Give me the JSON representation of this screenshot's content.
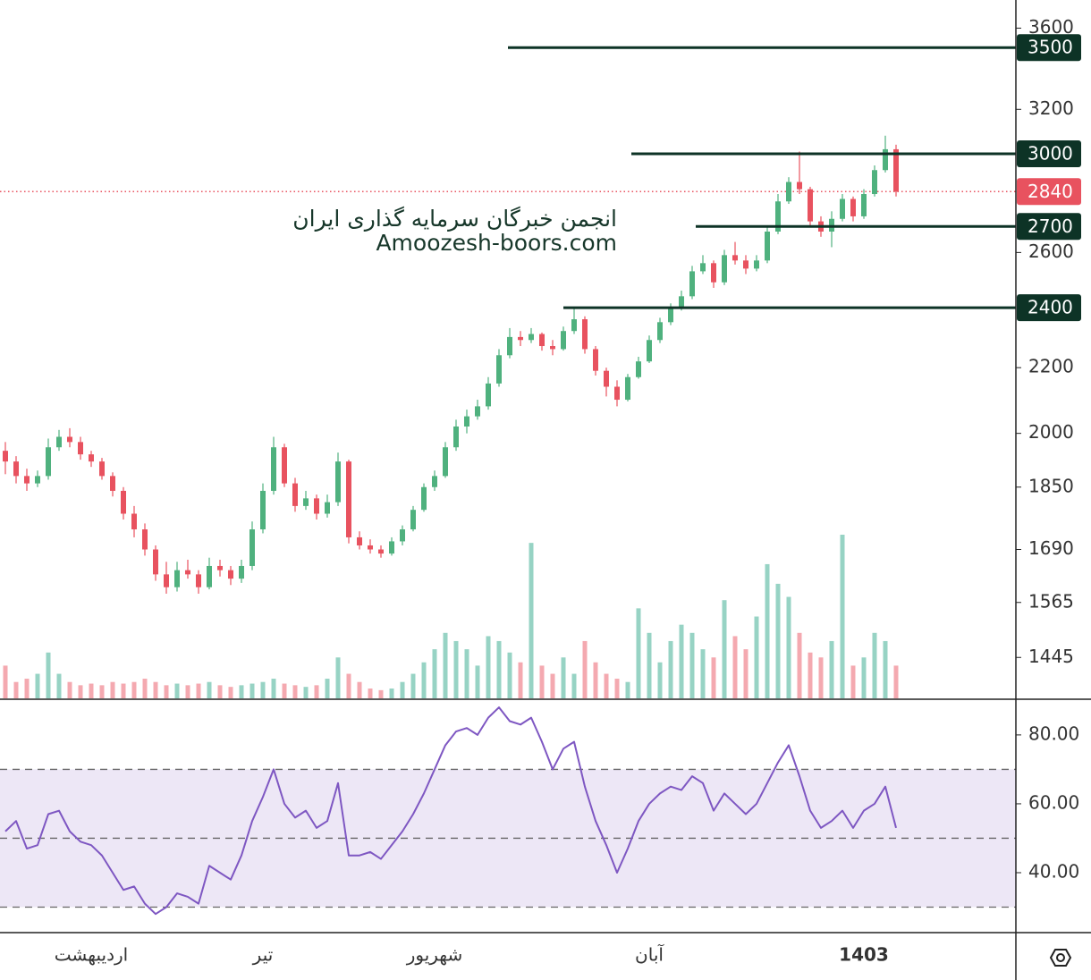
{
  "chart_data": [
    {
      "type": "candlestick",
      "watermark": [
        "انجمن خبرگان سرمایه گذاری ایران",
        "Amoozesh-boors.com"
      ],
      "categories": [
        null,
        null,
        null,
        null,
        null,
        null,
        null,
        null,
        "اردیبهشت",
        null,
        null,
        null,
        null,
        null,
        null,
        null,
        null,
        null,
        null,
        null,
        null,
        null,
        null,
        null,
        "تیر",
        null,
        null,
        null,
        null,
        null,
        null,
        null,
        null,
        null,
        null,
        null,
        null,
        null,
        null,
        null,
        "شهریور",
        null,
        null,
        null,
        null,
        null,
        null,
        null,
        null,
        null,
        null,
        null,
        null,
        null,
        null,
        null,
        null,
        null,
        null,
        null,
        "آبان",
        null,
        null,
        null,
        null,
        null,
        null,
        null,
        null,
        null,
        null,
        null,
        null,
        null,
        null,
        null,
        null,
        null,
        null,
        null,
        "1403",
        null,
        null,
        null
      ],
      "ohlc": [
        [
          1950,
          1975,
          1885,
          1920
        ],
        [
          1920,
          1935,
          1860,
          1880
        ],
        [
          1880,
          1900,
          1840,
          1860
        ],
        [
          1860,
          1895,
          1850,
          1880
        ],
        [
          1880,
          1985,
          1870,
          1960
        ],
        [
          1960,
          2010,
          1950,
          1990
        ],
        [
          1990,
          2015,
          1960,
          1975
        ],
        [
          1975,
          1990,
          1925,
          1940
        ],
        [
          1940,
          1950,
          1905,
          1920
        ],
        [
          1920,
          1930,
          1870,
          1880
        ],
        [
          1880,
          1890,
          1825,
          1840
        ],
        [
          1840,
          1850,
          1765,
          1780
        ],
        [
          1780,
          1800,
          1720,
          1740
        ],
        [
          1740,
          1755,
          1675,
          1690
        ],
        [
          1690,
          1700,
          1615,
          1630
        ],
        [
          1630,
          1660,
          1585,
          1600
        ],
        [
          1600,
          1660,
          1590,
          1640
        ],
        [
          1640,
          1665,
          1620,
          1630
        ],
        [
          1630,
          1640,
          1585,
          1600
        ],
        [
          1600,
          1670,
          1595,
          1650
        ],
        [
          1650,
          1665,
          1625,
          1640
        ],
        [
          1640,
          1650,
          1605,
          1620
        ],
        [
          1620,
          1665,
          1610,
          1650
        ],
        [
          1650,
          1760,
          1640,
          1740
        ],
        [
          1740,
          1860,
          1730,
          1840
        ],
        [
          1840,
          1990,
          1830,
          1960
        ],
        [
          1960,
          1970,
          1850,
          1860
        ],
        [
          1860,
          1875,
          1785,
          1800
        ],
        [
          1800,
          1840,
          1790,
          1820
        ],
        [
          1820,
          1830,
          1765,
          1780
        ],
        [
          1780,
          1830,
          1770,
          1810
        ],
        [
          1810,
          1945,
          1800,
          1920
        ],
        [
          1920,
          1925,
          1705,
          1720
        ],
        [
          1720,
          1735,
          1690,
          1700
        ],
        [
          1700,
          1715,
          1680,
          1690
        ],
        [
          1690,
          1700,
          1670,
          1680
        ],
        [
          1680,
          1720,
          1675,
          1710
        ],
        [
          1710,
          1750,
          1700,
          1740
        ],
        [
          1740,
          1800,
          1735,
          1790
        ],
        [
          1790,
          1860,
          1785,
          1850
        ],
        [
          1850,
          1895,
          1840,
          1880
        ],
        [
          1880,
          1975,
          1875,
          1960
        ],
        [
          1960,
          2040,
          1950,
          2020
        ],
        [
          2020,
          2070,
          2000,
          2050
        ],
        [
          2050,
          2100,
          2040,
          2080
        ],
        [
          2080,
          2170,
          2070,
          2150
        ],
        [
          2150,
          2260,
          2140,
          2240
        ],
        [
          2240,
          2330,
          2230,
          2300
        ],
        [
          2300,
          2320,
          2270,
          2290
        ],
        [
          2290,
          2330,
          2280,
          2310
        ],
        [
          2310,
          2315,
          2255,
          2270
        ],
        [
          2270,
          2290,
          2240,
          2260
        ],
        [
          2260,
          2335,
          2255,
          2320
        ],
        [
          2320,
          2400,
          2310,
          2360
        ],
        [
          2360,
          2370,
          2245,
          2260
        ],
        [
          2260,
          2270,
          2175,
          2190
        ],
        [
          2190,
          2200,
          2110,
          2140
        ],
        [
          2140,
          2160,
          2080,
          2100
        ],
        [
          2100,
          2180,
          2095,
          2170
        ],
        [
          2170,
          2235,
          2165,
          2220
        ],
        [
          2220,
          2305,
          2215,
          2290
        ],
        [
          2290,
          2365,
          2280,
          2350
        ],
        [
          2350,
          2415,
          2340,
          2400
        ],
        [
          2400,
          2460,
          2390,
          2440
        ],
        [
          2440,
          2550,
          2430,
          2530
        ],
        [
          2530,
          2590,
          2520,
          2560
        ],
        [
          2560,
          2570,
          2470,
          2490
        ],
        [
          2490,
          2610,
          2480,
          2590
        ],
        [
          2590,
          2640,
          2555,
          2570
        ],
        [
          2570,
          2590,
          2520,
          2540
        ],
        [
          2540,
          2590,
          2530,
          2570
        ],
        [
          2570,
          2700,
          2560,
          2680
        ],
        [
          2680,
          2830,
          2670,
          2800
        ],
        [
          2800,
          2900,
          2790,
          2880
        ],
        [
          2880,
          3010,
          2830,
          2850
        ],
        [
          2850,
          2860,
          2700,
          2720
        ],
        [
          2720,
          2740,
          2660,
          2680
        ],
        [
          2680,
          2760,
          2620,
          2730
        ],
        [
          2730,
          2830,
          2720,
          2810
        ],
        [
          2810,
          2820,
          2720,
          2740
        ],
        [
          2740,
          2850,
          2730,
          2830
        ],
        [
          2830,
          2950,
          2820,
          2930
        ],
        [
          2930,
          3080,
          2920,
          3020
        ],
        [
          3020,
          3040,
          2820,
          2840
        ]
      ],
      "volume": [
        20,
        10,
        12,
        15,
        28,
        15,
        10,
        8,
        9,
        8,
        10,
        9,
        10,
        12,
        10,
        8,
        9,
        8,
        9,
        10,
        8,
        7,
        8,
        9,
        10,
        12,
        9,
        8,
        7,
        8,
        12,
        25,
        15,
        10,
        6,
        5,
        6,
        10,
        15,
        22,
        30,
        40,
        35,
        30,
        20,
        38,
        35,
        28,
        22,
        95,
        20,
        15,
        25,
        15,
        35,
        22,
        15,
        12,
        10,
        55,
        40,
        22,
        35,
        45,
        40,
        30,
        25,
        60,
        38,
        30,
        50,
        82,
        70,
        62,
        40,
        28,
        25,
        35,
        100,
        20,
        25,
        40,
        35,
        20
      ],
      "volume_lim": [
        0,
        100
      ],
      "ylim": [
        1360,
        3750
      ],
      "log_scale": true,
      "yticks": [
        3600,
        3200,
        2600,
        2200,
        2000,
        1850,
        1690,
        1565,
        1445
      ],
      "levels": [
        3500,
        3000,
        2700,
        2400
      ],
      "last_price": 2840,
      "up_color": "#4fb17e",
      "down_color": "#e8525f",
      "volume_up_color": "#97d3c4",
      "volume_down_color": "#f4a9b0",
      "level_color": "#0d3326"
    },
    {
      "type": "line",
      "values": [
        52,
        55,
        47,
        48,
        57,
        58,
        52,
        49,
        48,
        45,
        40,
        35,
        36,
        31,
        28,
        30,
        34,
        33,
        31,
        42,
        40,
        38,
        45,
        55,
        62,
        70,
        60,
        56,
        58,
        53,
        55,
        66,
        45,
        45,
        46,
        44,
        48,
        52,
        57,
        63,
        70,
        77,
        81,
        82,
        80,
        85,
        88,
        84,
        83,
        85,
        78,
        70,
        76,
        78,
        65,
        55,
        48,
        40,
        47,
        55,
        60,
        63,
        65,
        64,
        68,
        66,
        58,
        63,
        60,
        57,
        60,
        66,
        72,
        77,
        68,
        58,
        53,
        55,
        58,
        53,
        58,
        60,
        65,
        53
      ],
      "color": "#7e57c2",
      "ylim": [
        22.6,
        90.1
      ],
      "yticks": [
        {
          "value": 80,
          "label": "80.00"
        },
        {
          "value": 60,
          "label": "60.00"
        },
        {
          "value": 40,
          "label": "40.00"
        }
      ],
      "levels": [
        70,
        50,
        30
      ],
      "band": [
        30,
        70
      ],
      "band_color": "#ede7f6"
    }
  ]
}
